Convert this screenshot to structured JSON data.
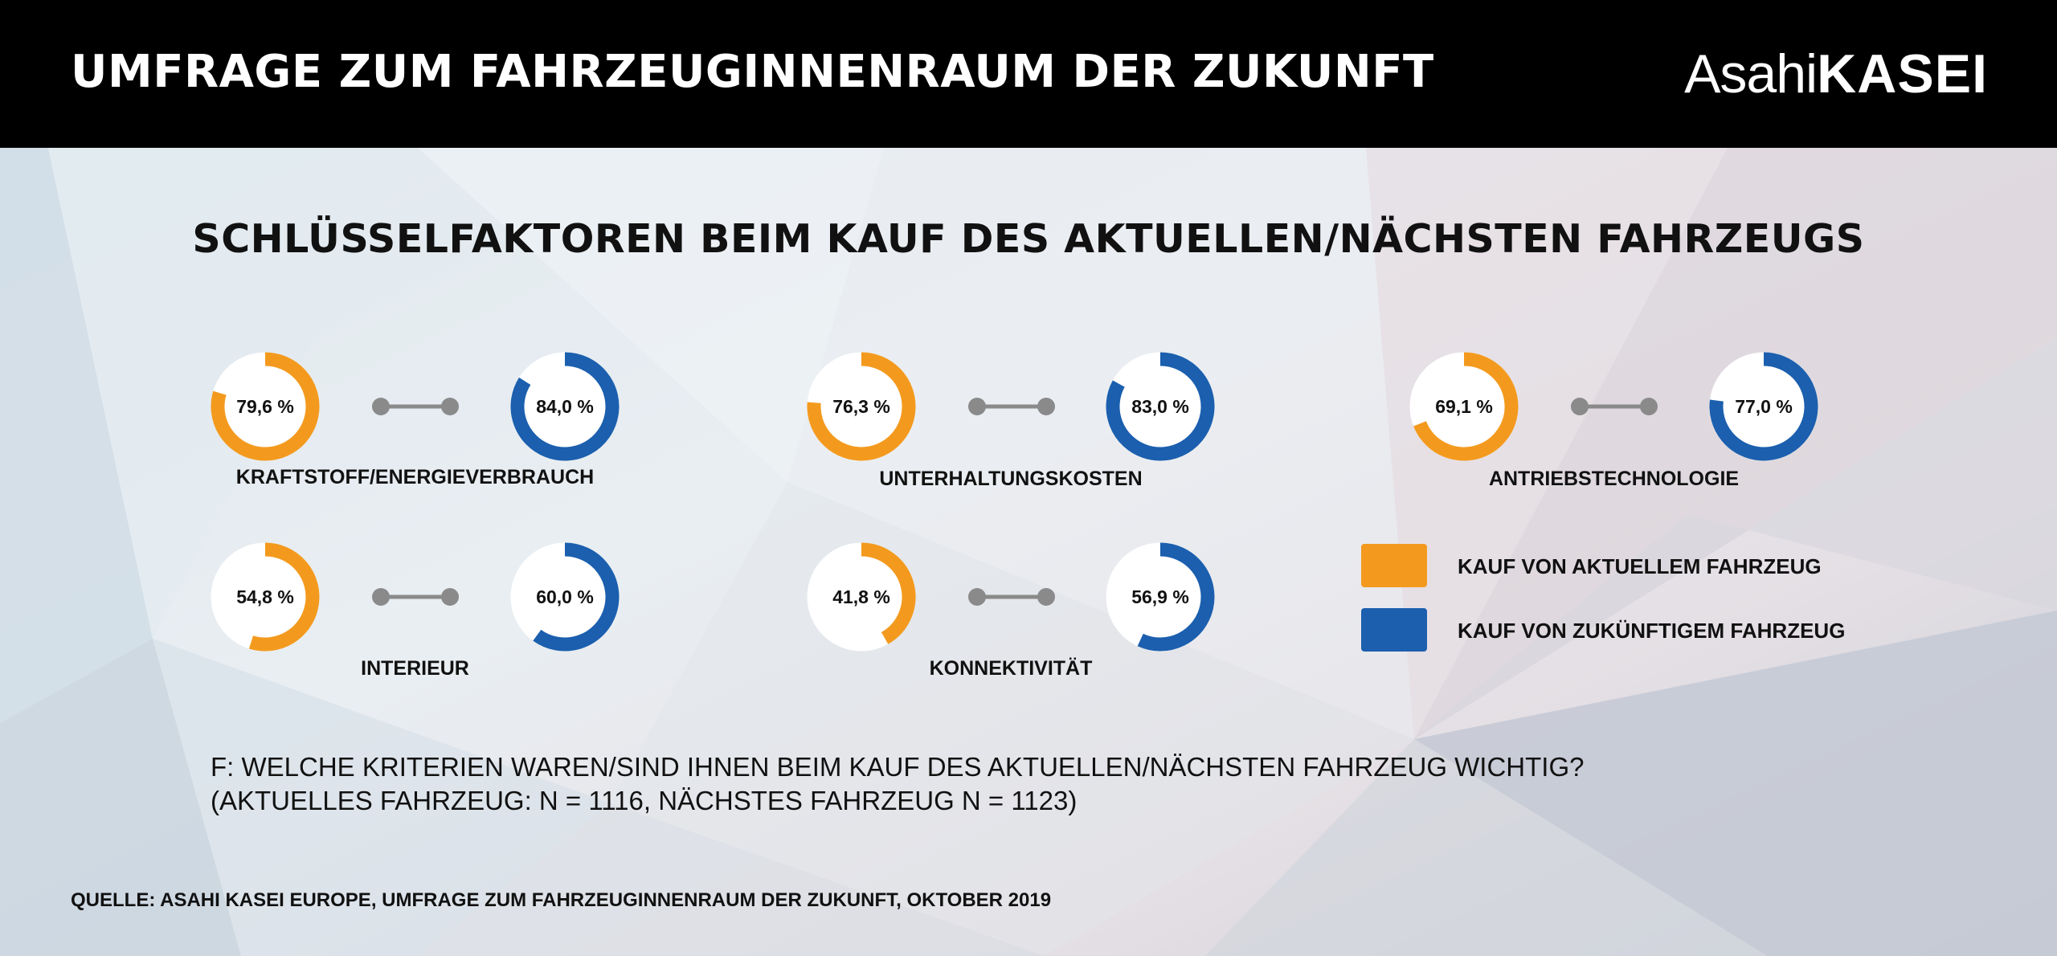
{
  "header": {
    "title": "UMFRAGE ZUM FAHRZEUGINNENRAUM DER ZUKUNFT",
    "logo_part1": "Asahi",
    "logo_part2": "KASEI"
  },
  "subtitle": "SCHLÜSSELFAKTOREN BEIM KAUF DES AKTUELLEN/NÄCHSTEN FAHRZEUGS",
  "legend": {
    "current": {
      "label": "KAUF VON AKTUELLEM FAHRZEUG",
      "color": "#F39A1E"
    },
    "future": {
      "label": "KAUF VON ZUKÜNFTIGEM FAHRZEUG",
      "color": "#1B5FAE"
    }
  },
  "question": {
    "line1": "F: WELCHE KRITERIEN WAREN/SIND IHNEN BEIM KAUF DES AKTUELLEN/NÄCHSTEN FAHRZEUG WICHTIG?",
    "line2": "(AKTUELLES FAHRZEUG: N = 1116, NÄCHSTES FAHRZEUG N = 1123)"
  },
  "source": "QUELLE: ASAHI KASEI EUROPE, UMFRAGE ZUM FAHRZEUGINNENRAUM DER ZUKUNFT, OKTOBER 2019",
  "chart_data": {
    "type": "donut",
    "title": "SCHLÜSSELFAKTOREN BEIM KAUF DES AKTUELLEN/NÄCHSTEN FAHRZEUGS",
    "unit": "%",
    "series": [
      {
        "name": "KAUF VON AKTUELLEM FAHRZEUG",
        "color": "#F39A1E"
      },
      {
        "name": "KAUF VON ZUKÜNFTIGEM FAHRZEUG",
        "color": "#1B5FAE"
      }
    ],
    "items": [
      {
        "category": "KRAFTSTOFF/ENERGIEVERBRAUCH",
        "current": 79.6,
        "future": 84.0,
        "current_label": "79,6 %",
        "future_label": "84,0 %"
      },
      {
        "category": "UNTERHALTUNGSKOSTEN",
        "current": 76.3,
        "future": 83.0,
        "current_label": "76,3 %",
        "future_label": "83,0 %"
      },
      {
        "category": "ANTRIEBSTECHNOLOGIE",
        "current": 69.1,
        "future": 77.0,
        "current_label": "69,1 %",
        "future_label": "77,0 %"
      },
      {
        "category": "INTERIEUR",
        "current": 54.8,
        "future": 60.0,
        "current_label": "54,8 %",
        "future_label": "60,0 %"
      },
      {
        "category": "KONNEKTIVITÄT",
        "current": 41.8,
        "future": 56.9,
        "current_label": "41,8 %",
        "future_label": "56,9 %"
      }
    ]
  }
}
